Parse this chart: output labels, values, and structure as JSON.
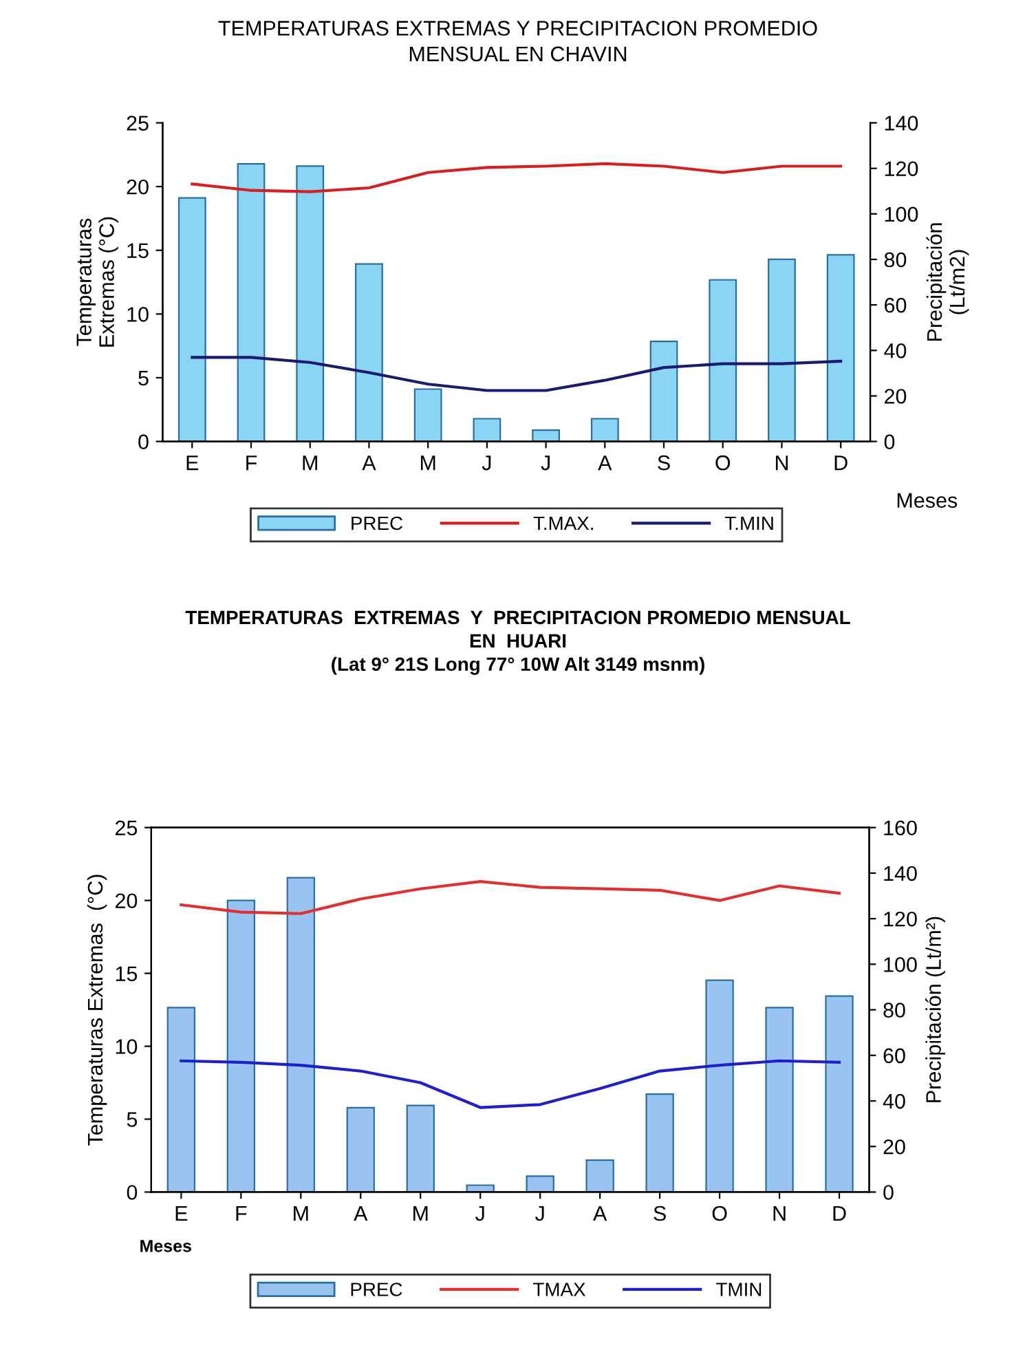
{
  "chart_data": [
    {
      "type": "bar",
      "title": "TEMPERATURAS EXTREMAS Y PRECIPITACION PROMEDIO\nMENSUAL EN CHAVIN",
      "xlabel": "Meses",
      "ylabel": "Temperaturas\nExtremas (°C)",
      "y2label": "Precipitación\n(Lt/m2)",
      "categories": [
        "E",
        "F",
        "M",
        "A",
        "M",
        "J",
        "J",
        "A",
        "S",
        "O",
        "N",
        "D"
      ],
      "series": [
        {
          "name": "PREC",
          "axis": "y2",
          "color": "#8ad4f4",
          "values": [
            107,
            122,
            121,
            78,
            23,
            10,
            5,
            10,
            44,
            71,
            80,
            82
          ]
        },
        {
          "name": "T.MAX.",
          "type": "line",
          "color": "#d62020",
          "values": [
            20.2,
            19.7,
            19.6,
            19.9,
            21.1,
            21.5,
            21.6,
            21.8,
            21.6,
            21.1,
            21.6,
            21.6
          ]
        },
        {
          "name": "T.MIN",
          "type": "line",
          "color": "#1a1a6e",
          "values": [
            6.6,
            6.6,
            6.2,
            5.4,
            4.5,
            4.0,
            4.0,
            4.8,
            5.8,
            6.1,
            6.1,
            6.3
          ]
        }
      ],
      "ylim": [
        0,
        25
      ],
      "yticks": [
        0,
        5,
        10,
        15,
        20,
        25
      ],
      "y2lim": [
        0,
        140
      ],
      "y2ticks": [
        0,
        20,
        40,
        60,
        80,
        100,
        120,
        140
      ],
      "legend": "bottom",
      "grid": false
    },
    {
      "type": "bar",
      "title": "TEMPERATURAS  EXTREMAS  Y  PRECIPITACION PROMEDIO MENSUAL\nEN  HUARI",
      "subtitle": "(Lat 9° 21S Long 77° 10W Alt 3149 msnm)",
      "xlabel": "Meses",
      "ylabel": "Temperaturas Extremas  (°C)",
      "y2label": "Precipitación (Lt/m²)",
      "categories": [
        "E",
        "F",
        "M",
        "A",
        "M",
        "J",
        "J",
        "A",
        "S",
        "O",
        "N",
        "D"
      ],
      "series": [
        {
          "name": "PREC",
          "axis": "y2",
          "color": "#99c4f2",
          "values": [
            81,
            128,
            138,
            37,
            38,
            3,
            7,
            14,
            43,
            93,
            81,
            86
          ]
        },
        {
          "name": "TMAX",
          "type": "line",
          "color": "#e03030",
          "values": [
            19.7,
            19.2,
            19.1,
            20.1,
            20.8,
            21.3,
            20.9,
            20.8,
            20.7,
            20.0,
            21.0,
            20.5
          ]
        },
        {
          "name": "TMIN",
          "type": "line",
          "color": "#2020c8",
          "values": [
            9.0,
            8.9,
            8.7,
            8.3,
            7.5,
            5.8,
            6.0,
            7.1,
            8.3,
            8.7,
            9.0,
            8.9
          ]
        }
      ],
      "ylim": [
        0,
        25
      ],
      "yticks": [
        0,
        5,
        10,
        15,
        20,
        25
      ],
      "y2lim": [
        0,
        160
      ],
      "y2ticks": [
        0,
        20,
        40,
        60,
        80,
        100,
        120,
        140,
        160
      ],
      "legend": "bottom",
      "grid": false
    }
  ]
}
